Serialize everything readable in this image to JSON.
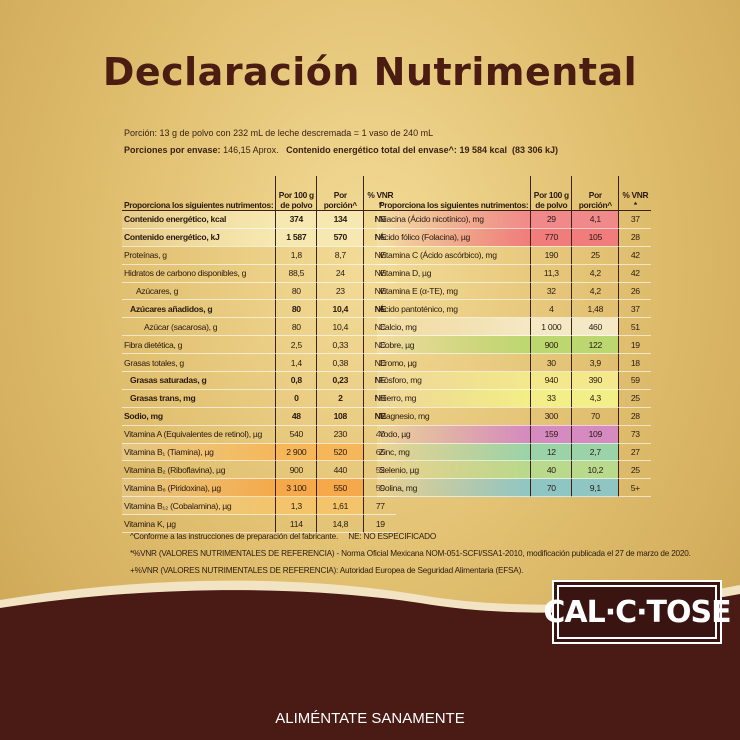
{
  "header": {
    "title": "Declaración Nutrimental"
  },
  "portion": {
    "line1": "Porción: 13 g de polvo con 232 mL de leche descremada = 1 vaso de 240 mL",
    "per_container_label": "Porciones por envase:",
    "per_container_value": "146,15 Aprox.",
    "energy_label": "Contenido energético total del envase^:",
    "energy_value": "19 584 kcal  (83 306 kJ)"
  },
  "left_table": {
    "headers": [
      "Proporciona los siguientes nutrimentos:",
      "Por 100 g de polvo",
      "Por porción^",
      "% VNR *"
    ],
    "rows": [
      [
        "Contenido energético, kcal",
        "374",
        "134",
        "NE"
      ],
      [
        "Contenido energético, kJ",
        "1 587",
        "570",
        "NE"
      ],
      [
        "Proteínas, g",
        "1,8",
        "8,7",
        "NE"
      ],
      [
        "Hidratos de carbono disponibles, g",
        "88,5",
        "24",
        "NE"
      ],
      [
        "Azúcares, g",
        "80",
        "23",
        "NE"
      ],
      [
        "Azúcares añadidos, g",
        "80",
        "10,4",
        "NE"
      ],
      [
        "Azúcar (sacarosa), g",
        "80",
        "10,4",
        "NE"
      ],
      [
        "Fibra dietética, g",
        "2,5",
        "0,33",
        "NE"
      ],
      [
        "Grasas totales, g",
        "1,4",
        "0,38",
        "NE"
      ],
      [
        "Grasas saturadas, g",
        "0,8",
        "0,23",
        "NE"
      ],
      [
        "Grasas trans, mg",
        "0",
        "2",
        "NE"
      ],
      [
        "Sodio, mg",
        "48",
        "108",
        "NE"
      ],
      [
        "Vitamina A (Equivalentes de retinol), µg",
        "540",
        "230",
        "40"
      ],
      [
        "Vitamina B₁ (Tiamina), µg",
        "2 900",
        "520",
        "65"
      ],
      [
        "Vitamina B₂ (Riboflavina), µg",
        "900",
        "440",
        "52"
      ],
      [
        "Vitamina B₆ (Piridoxina), µg",
        "3 100",
        "550",
        "59"
      ],
      [
        "Vitamina B₁₂ (Cobalamina), µg",
        "1,3",
        "1,61",
        "77"
      ],
      [
        "Vitamina K, µg",
        "114",
        "14,8",
        "19"
      ]
    ]
  },
  "right_table": {
    "headers": [
      "Proporciona los siguientes nutrimentos:",
      "Por 100 g de polvo",
      "Por porción^",
      "% VNR *"
    ],
    "rows": [
      [
        "Niacina (Ácido nicotínico), mg",
        "29",
        "4,1",
        "37"
      ],
      [
        "Ácido fólico (Folacina), µg",
        "770",
        "105",
        "28"
      ],
      [
        "Vitamina C (Ácido ascórbico), mg",
        "190",
        "25",
        "42"
      ],
      [
        "Vitamina D, µg",
        "11,3",
        "4,2",
        "42"
      ],
      [
        "Vitamina E (α-TE), mg",
        "32",
        "4,2",
        "26"
      ],
      [
        "Ácido pantoténico, mg",
        "4",
        "1,48",
        "37"
      ],
      [
        "Calcio, mg",
        "1 000",
        "460",
        "51"
      ],
      [
        "Cobre, µg",
        "900",
        "122",
        "19"
      ],
      [
        "Cromo, µg",
        "30",
        "3,9",
        "18"
      ],
      [
        "Fósforo, mg",
        "940",
        "390",
        "59"
      ],
      [
        "Hierro, mg",
        "33",
        "4,3",
        "25"
      ],
      [
        "Magnesio, mg",
        "300",
        "70",
        "28"
      ],
      [
        "Yodo, µg",
        "159",
        "109",
        "73"
      ],
      [
        "Zinc, mg",
        "12",
        "2,7",
        "27"
      ],
      [
        "Selenio, µg",
        "40",
        "10,2",
        "25"
      ],
      [
        "Colina, mg",
        "70",
        "9,1",
        "5+"
      ]
    ]
  },
  "footnotes": [
    "^Conforme a las instrucciones de preparación del fabricante.     NE: NO ESPECIFICADO",
    "*%VNR (VALORES NUTRIMENTALES DE REFERENCIA) - Norma Oficial Mexicana NOM-051-SCFI/SSA1-2010, modificación publicada el 27 de marzo de 2020.",
    "+%VNR (VALORES NUTRIMENTALES DE REFERENCIA): Autoridad Europea de Seguridad Alimentaria (EFSA)."
  ],
  "logo": "CAL·C·TOSE",
  "footer": "ALIMÉNTATE SANAMENTE"
}
